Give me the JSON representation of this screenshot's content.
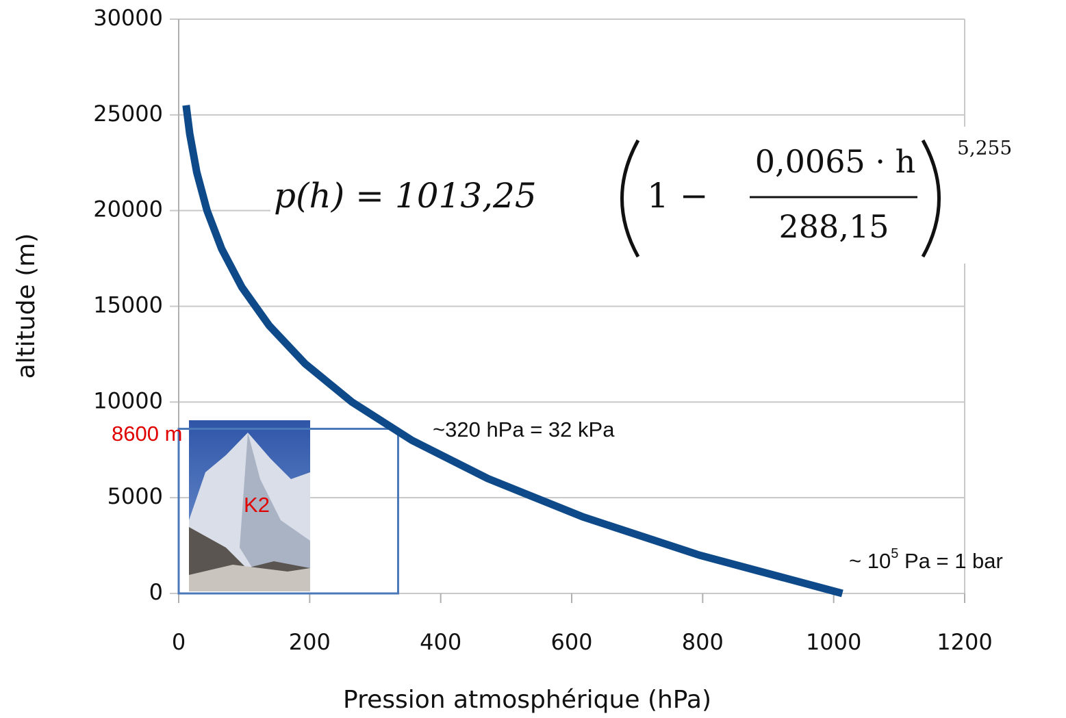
{
  "chart_data": {
    "type": "line",
    "x_label": "Pression atmosphérique (hPa)",
    "y_label": "altitude (m)",
    "x": [
      1013.25,
      795,
      617,
      472,
      356,
      264.5,
      193,
      138,
      96.4,
      65.6,
      43.3,
      27.6,
      16.9,
      11.3
    ],
    "values": [
      0,
      2000,
      4000,
      6000,
      8000,
      10000,
      12000,
      14000,
      16000,
      18000,
      20000,
      22000,
      24000,
      25500
    ],
    "color": "#0e4a8a",
    "xlim": [
      0,
      1200
    ],
    "xticks": [
      0,
      200,
      400,
      600,
      800,
      1000,
      1200
    ],
    "ylim": [
      0,
      30000
    ],
    "yticks": [
      0,
      5000,
      10000,
      15000,
      20000,
      25000,
      30000
    ],
    "grid": true,
    "formula": {
      "lhs": "p(h) = 1013,25",
      "one_minus": "1 −",
      "numerator": "0,0065 · h",
      "denominator": "288,15",
      "exponent": "5,255"
    },
    "reference_point": {
      "x": 335,
      "y": 8600,
      "x_text": "~320 hPa = 32 kPa",
      "y_text": "8600 m",
      "name": "K2"
    },
    "sea_level_text": {
      "prefix": "~ 10",
      "superscript": "5",
      "suffix": " Pa = 1 bar"
    }
  }
}
